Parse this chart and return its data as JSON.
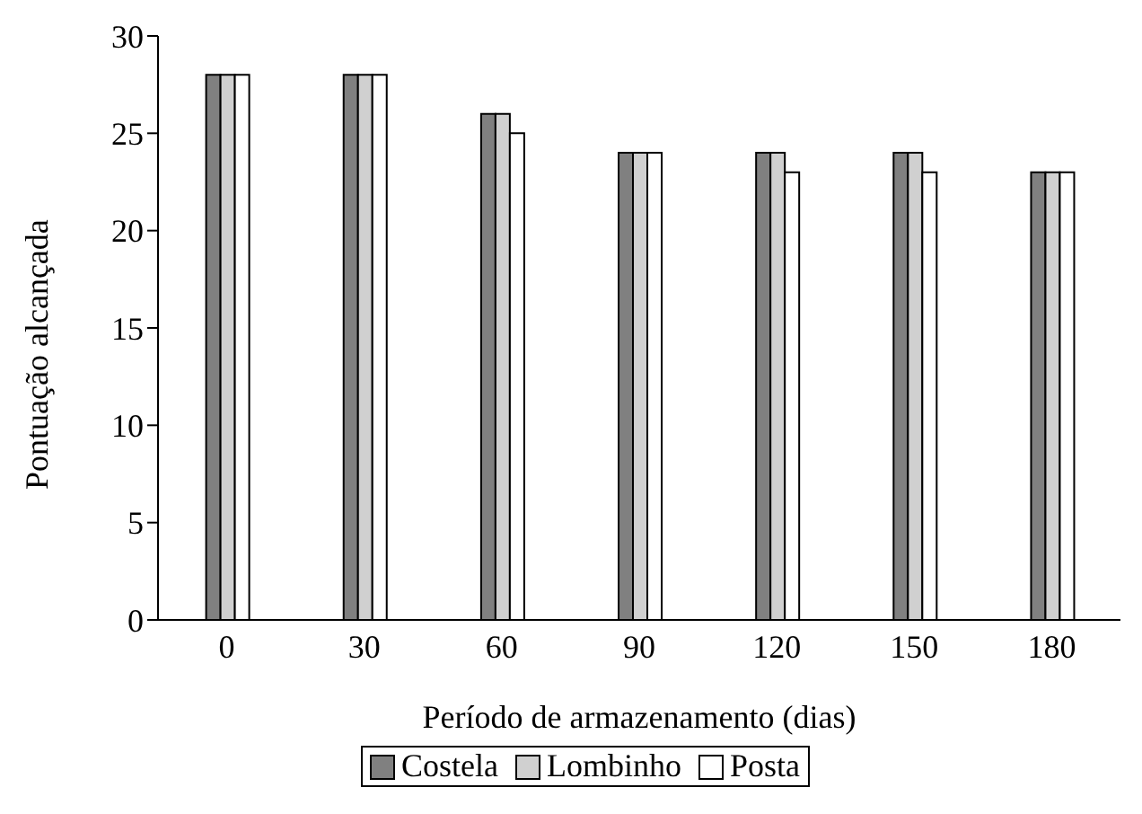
{
  "chart_data": {
    "type": "bar",
    "xlabel": "Período de armazenamento (dias)",
    "ylabel": "Pontuação alcançada",
    "categories": [
      "0",
      "30",
      "60",
      "90",
      "120",
      "150",
      "180"
    ],
    "series": [
      {
        "name": "Costela",
        "color": "#808080",
        "values": [
          28,
          28,
          26,
          24,
          24,
          24,
          23
        ]
      },
      {
        "name": "Lombinho",
        "color": "#d0d0d0",
        "values": [
          28,
          28,
          26,
          24,
          24,
          24,
          23
        ]
      },
      {
        "name": "Posta",
        "color": "#ffffff",
        "values": [
          28,
          28,
          25,
          24,
          23,
          23,
          23
        ]
      }
    ],
    "ylim": [
      0,
      30
    ],
    "yticks": [
      0,
      5,
      10,
      15,
      20,
      25,
      30
    ],
    "grid": false,
    "legend": "bottom"
  }
}
